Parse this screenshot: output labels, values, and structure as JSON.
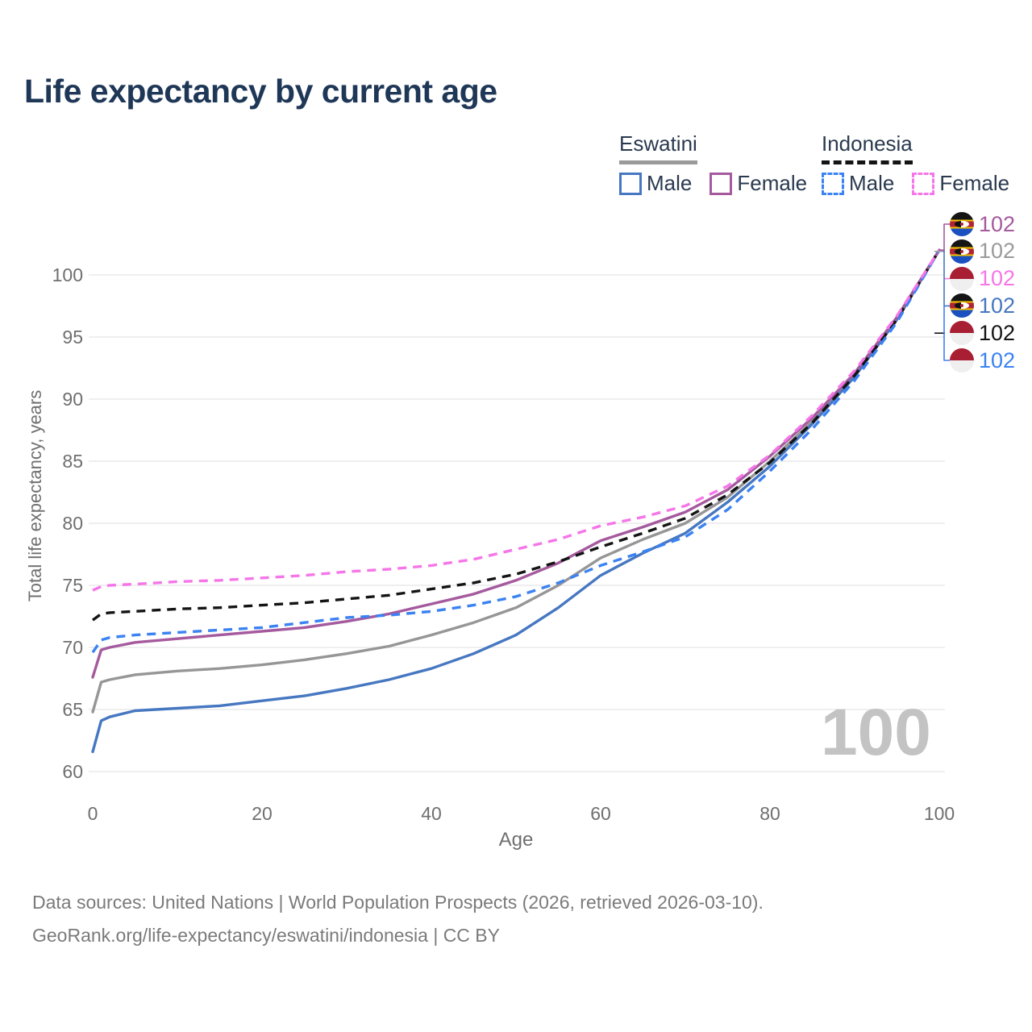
{
  "header": {
    "title": "Life expectancy by current age"
  },
  "legend": {
    "groups": [
      {
        "name": "Eswatini",
        "line_style": "solid",
        "underline_color": "#9a9a9a",
        "items": [
          {
            "label": "Male",
            "color": "#4677c1",
            "dashed": false
          },
          {
            "label": "Female",
            "color": "#a55a9e",
            "dashed": false
          }
        ]
      },
      {
        "name": "Indonesia",
        "line_style": "dashed",
        "underline_color": "#141414",
        "items": [
          {
            "label": "Male",
            "color": "#3b82f2",
            "dashed": true
          },
          {
            "label": "Female",
            "color": "#f576e8",
            "dashed": true
          }
        ]
      }
    ]
  },
  "chart_data": {
    "type": "line",
    "title": "Life expectancy by current age",
    "xlabel": "Age",
    "ylabel": "Total life expectancy, years",
    "xlim": [
      0,
      100
    ],
    "ylim": [
      58,
      103
    ],
    "x_ticks": [
      0,
      20,
      40,
      60,
      80,
      100
    ],
    "y_ticks": [
      60,
      65,
      70,
      75,
      80,
      85,
      90,
      95,
      100
    ],
    "grid": "horizontal",
    "legend_position": "top-right",
    "ages": [
      0,
      1,
      2,
      5,
      10,
      15,
      20,
      25,
      30,
      35,
      40,
      45,
      50,
      55,
      60,
      65,
      70,
      75,
      80,
      85,
      90,
      95,
      100
    ],
    "series": [
      {
        "name": "Eswatini",
        "country": "Eswatini",
        "sex": "Both",
        "color": "#969696",
        "dashed": false,
        "values": [
          64.8,
          67.2,
          67.4,
          67.8,
          68.1,
          68.3,
          68.6,
          69.0,
          69.5,
          70.1,
          71.0,
          72.0,
          73.2,
          75.0,
          77.2,
          78.7,
          80.0,
          82.1,
          85.0,
          88.2,
          92.0,
          96.5,
          102
        ]
      },
      {
        "name": "Eswatini Male",
        "country": "Eswatini",
        "sex": "Male",
        "color": "#4677c1",
        "dashed": false,
        "values": [
          61.6,
          64.1,
          64.4,
          64.9,
          65.1,
          65.3,
          65.7,
          66.1,
          66.7,
          67.4,
          68.3,
          69.5,
          71.0,
          73.2,
          75.8,
          77.6,
          79.2,
          81.7,
          84.6,
          88.0,
          91.8,
          96.4,
          102
        ]
      },
      {
        "name": "Eswatini Female",
        "country": "Eswatini",
        "sex": "Female",
        "color": "#a55a9e",
        "dashed": false,
        "values": [
          67.6,
          69.8,
          70.0,
          70.4,
          70.7,
          71.0,
          71.3,
          71.6,
          72.1,
          72.7,
          73.5,
          74.3,
          75.4,
          76.8,
          78.6,
          79.7,
          80.9,
          82.7,
          85.4,
          88.5,
          92.1,
          96.6,
          102
        ]
      },
      {
        "name": "Indonesia",
        "country": "Indonesia",
        "sex": "Both",
        "color": "#141414",
        "dashed": true,
        "values": [
          72.2,
          72.7,
          72.8,
          72.9,
          73.1,
          73.2,
          73.4,
          73.6,
          73.9,
          74.2,
          74.7,
          75.2,
          75.9,
          76.9,
          78.1,
          79.2,
          80.4,
          82.3,
          84.9,
          88.1,
          91.9,
          96.4,
          102
        ]
      },
      {
        "name": "Indonesia Male",
        "country": "Indonesia",
        "sex": "Male",
        "color": "#3b82f2",
        "dashed": true,
        "values": [
          69.6,
          70.6,
          70.8,
          71.0,
          71.2,
          71.4,
          71.6,
          72.0,
          72.4,
          72.6,
          72.9,
          73.4,
          74.1,
          75.2,
          76.6,
          77.7,
          78.9,
          81.1,
          84.2,
          87.6,
          91.5,
          96.2,
          102
        ]
      },
      {
        "name": "Indonesia Female",
        "country": "Indonesia",
        "sex": "Female",
        "color": "#f576e8",
        "dashed": true,
        "values": [
          74.6,
          74.9,
          75.0,
          75.1,
          75.3,
          75.4,
          75.6,
          75.8,
          76.1,
          76.3,
          76.6,
          77.1,
          77.9,
          78.7,
          79.8,
          80.5,
          81.4,
          83.0,
          85.5,
          88.7,
          92.3,
          96.7,
          102
        ]
      }
    ]
  },
  "end_labels": [
    {
      "value": "102",
      "color": "#a55a9e",
      "flag": "eswatini",
      "series": "Eswatini Female"
    },
    {
      "value": "102",
      "color": "#9a9a9a",
      "flag": "eswatini",
      "series": "Eswatini"
    },
    {
      "value": "102",
      "color": "#f576e8",
      "flag": "indonesia",
      "series": "Indonesia Female"
    },
    {
      "value": "102",
      "color": "#4677c1",
      "flag": "eswatini",
      "series": "Eswatini Male"
    },
    {
      "value": "102",
      "color": "#141414",
      "flag": "indonesia",
      "series": "Indonesia"
    },
    {
      "value": "102",
      "color": "#3b82f2",
      "flag": "indonesia",
      "series": "Indonesia Male"
    }
  ],
  "watermark": "100",
  "footer": {
    "line1": "Data sources: United Nations | World Population Prospects (2026, retrieved 2026-03-10).",
    "line2": "GeoRank.org/life-expectancy/eswatini/indonesia | CC BY"
  }
}
